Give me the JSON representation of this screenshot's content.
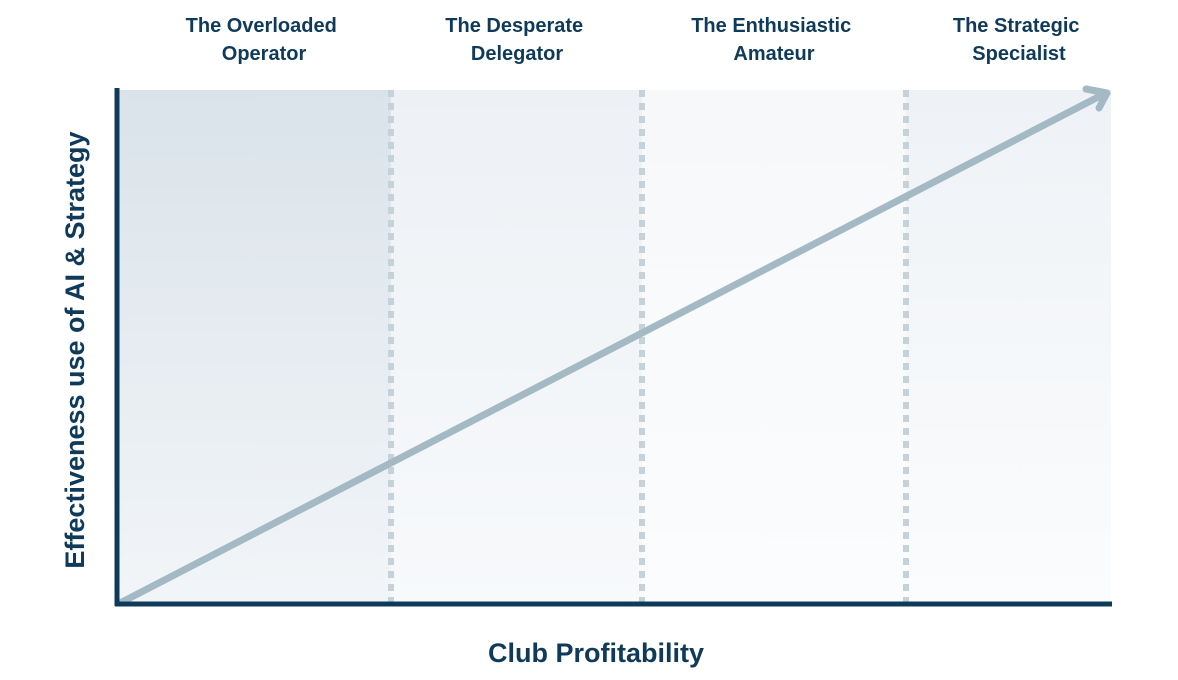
{
  "diagram": {
    "stages": [
      {
        "line1": "The Overloaded",
        "line2": "Operator"
      },
      {
        "line1": "The Desperate",
        "line2": "Delegator"
      },
      {
        "line1": "The Enthusiastic",
        "line2": "Amateur"
      },
      {
        "line1": "The Strategic",
        "line2": "Specialist"
      }
    ],
    "x_axis_label": "Club Profitability",
    "y_axis_label": "Effectiveness use of AI & Strategy",
    "colors": {
      "axis": "#0f3a5a",
      "trend_arrow": "#a3b9c4",
      "dashed_divider": "#c5d2da",
      "band_shade": "#dde5ec",
      "text": "#0f3a5a"
    }
  }
}
